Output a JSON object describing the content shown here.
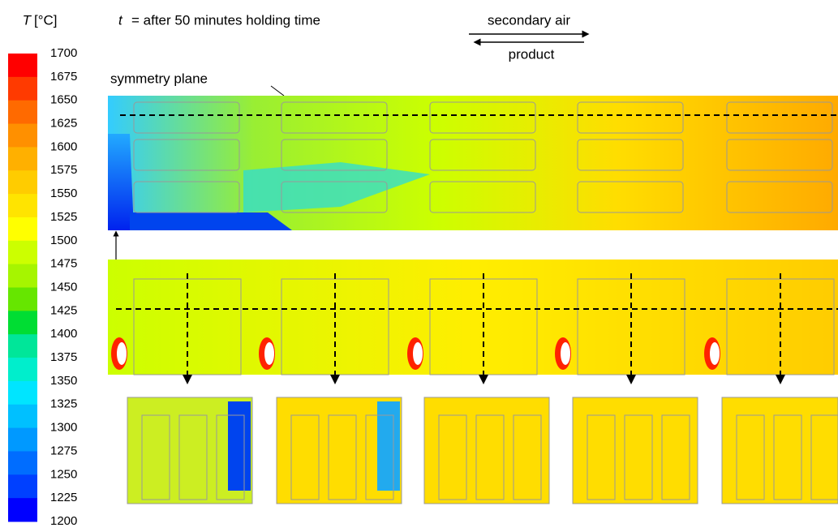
{
  "legend": {
    "variable": "T",
    "unit": "[°C]",
    "ticks": [
      1700,
      1675,
      1650,
      1625,
      1600,
      1575,
      1550,
      1525,
      1500,
      1475,
      1450,
      1425,
      1400,
      1375,
      1350,
      1325,
      1300,
      1275,
      1250,
      1225,
      1200
    ]
  },
  "caption": {
    "variable": "t",
    "text": "= after 50 minutes holding time"
  },
  "flow": {
    "top": "secondary air",
    "bottom": "product"
  },
  "annotation": "symmetry plane"
}
